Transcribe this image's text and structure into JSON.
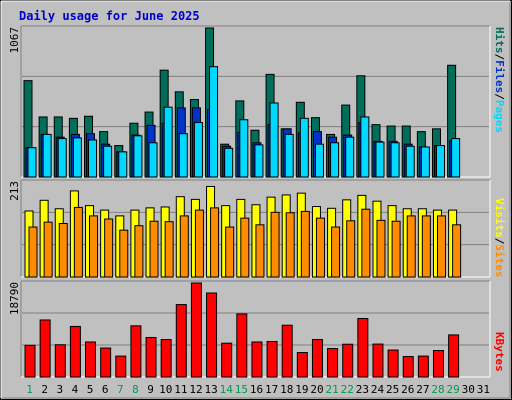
{
  "title": "Daily usage for June 2025",
  "colors": {
    "background": "#c0c0c0",
    "plot_bg": "#c0c0c0",
    "title": "#0000cc",
    "hits": "#006e5a",
    "files": "#0033cc",
    "pages": "#00d8ff",
    "visits": "#ffff00",
    "sites": "#ff8c00",
    "kbytes": "#ff0000",
    "weekend_day": "#009a50",
    "weekday": "#000000"
  },
  "right_labels": {
    "pages": "Pages",
    "files": "Files",
    "hits": "Hits",
    "sep": "/",
    "sites": "Sites",
    "visits": "Visits",
    "kbytes": "KBytes"
  },
  "chart_data": [
    {
      "type": "bar",
      "name": "hits-files-pages",
      "y_max_label": "1067",
      "ylim": [
        0,
        1067
      ],
      "grid": true,
      "x": [
        1,
        2,
        3,
        4,
        5,
        6,
        7,
        8,
        9,
        10,
        11,
        12,
        13,
        14,
        15,
        16,
        17,
        18,
        19,
        20,
        21,
        22,
        23,
        24,
        25,
        26,
        27,
        28,
        29,
        30,
        31
      ],
      "series": [
        {
          "key": "hits",
          "values": [
            690,
            430,
            430,
            420,
            435,
            325,
            225,
            385,
            465,
            765,
            610,
            555,
            1067,
            235,
            545,
            335,
            735,
            345,
            535,
            425,
            305,
            515,
            725,
            375,
            365,
            365,
            325,
            345,
            800,
            0,
            0
          ]
        },
        {
          "key": "files",
          "values": [
            210,
            305,
            285,
            305,
            310,
            235,
            180,
            300,
            370,
            385,
            495,
            495,
            485,
            220,
            320,
            245,
            375,
            345,
            315,
            325,
            285,
            300,
            390,
            255,
            255,
            235,
            215,
            225,
            260,
            0,
            0
          ]
        },
        {
          "key": "pages",
          "values": [
            210,
            305,
            275,
            280,
            265,
            220,
            180,
            295,
            245,
            500,
            310,
            390,
            790,
            205,
            410,
            230,
            530,
            305,
            420,
            235,
            245,
            285,
            430,
            250,
            245,
            220,
            215,
            225,
            275,
            0,
            0
          ]
        }
      ]
    },
    {
      "type": "bar",
      "name": "visits-sites",
      "y_max_label": "213",
      "ylim": [
        0,
        213
      ],
      "grid": true,
      "x": [
        1,
        2,
        3,
        4,
        5,
        6,
        7,
        8,
        9,
        10,
        11,
        12,
        13,
        14,
        15,
        16,
        17,
        18,
        19,
        20,
        21,
        22,
        23,
        24,
        25,
        26,
        27,
        28,
        29,
        30,
        31
      ],
      "series": [
        {
          "key": "visits",
          "values": [
            148,
            172,
            153,
            193,
            160,
            150,
            137,
            150,
            155,
            157,
            180,
            174,
            203,
            160,
            174,
            162,
            179,
            184,
            188,
            158,
            154,
            173,
            183,
            170,
            160,
            153,
            153,
            150,
            150,
            0,
            0
          ]
        },
        {
          "key": "sites",
          "values": [
            112,
            123,
            120,
            156,
            137,
            130,
            105,
            115,
            125,
            124,
            137,
            150,
            155,
            112,
            132,
            117,
            145,
            144,
            147,
            132,
            112,
            126,
            152,
            127,
            125,
            137,
            137,
            137,
            117,
            0,
            0
          ]
        }
      ]
    },
    {
      "type": "bar",
      "name": "kbytes",
      "y_max_label": "18790",
      "ylim": [
        0,
        18790
      ],
      "grid": true,
      "x": [
        1,
        2,
        3,
        4,
        5,
        6,
        7,
        8,
        9,
        10,
        11,
        12,
        13,
        14,
        15,
        16,
        17,
        18,
        19,
        20,
        21,
        22,
        23,
        24,
        25,
        26,
        27,
        28,
        29,
        30,
        31
      ],
      "series": [
        {
          "key": "kbytes",
          "values": [
            6330,
            11400,
            6450,
            10110,
            7000,
            5790,
            4180,
            10230,
            7900,
            7480,
            14480,
            18790,
            16790,
            6760,
            12600,
            7000,
            7100,
            10350,
            4890,
            7490,
            5690,
            6550,
            11690,
            6580,
            5390,
            4090,
            4180,
            5290,
            8410,
            0,
            0
          ]
        }
      ]
    }
  ],
  "x_labels": [
    "1",
    "2",
    "3",
    "4",
    "5",
    "6",
    "7",
    "8",
    "9",
    "10",
    "11",
    "12",
    "13",
    "14",
    "15",
    "16",
    "17",
    "18",
    "19",
    "20",
    "21",
    "22",
    "23",
    "24",
    "25",
    "26",
    "27",
    "28",
    "29",
    "30",
    "31"
  ],
  "weekend_days": [
    1,
    7,
    8,
    14,
    15,
    21,
    22,
    28,
    29
  ]
}
